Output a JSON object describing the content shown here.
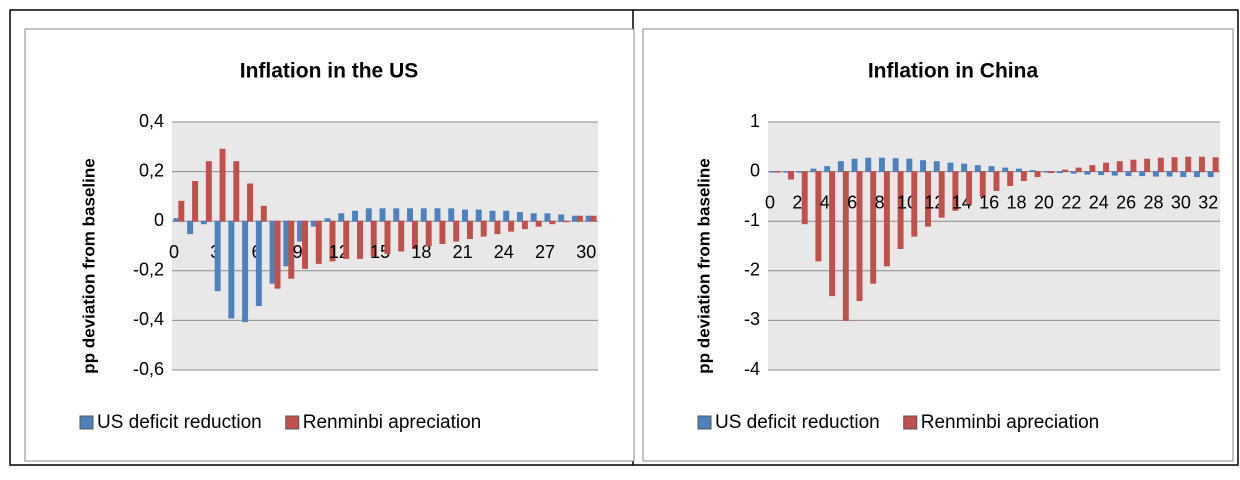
{
  "chart_data": [
    {
      "type": "bar",
      "title": "Inflation in the US",
      "y_label": "pp deviation from baseline",
      "categories": [
        "0",
        null,
        null,
        "3",
        null,
        null,
        "6",
        null,
        null,
        "9",
        null,
        null,
        "12",
        null,
        null,
        "15",
        null,
        null,
        "18",
        null,
        null,
        "21",
        null,
        null,
        "24",
        null,
        null,
        "27",
        null,
        null,
        "30"
      ],
      "series": [
        {
          "name": "US deficit reduction",
          "color": "#4f81bd",
          "values": [
            0.01,
            -0.05,
            -0.01,
            -0.28,
            -0.39,
            -0.405,
            -0.34,
            -0.25,
            -0.18,
            -0.08,
            -0.02,
            0.01,
            0.03,
            0.04,
            0.05,
            0.05,
            0.05,
            0.05,
            0.05,
            0.05,
            0.05,
            0.045,
            0.045,
            0.04,
            0.04,
            0.035,
            0.03,
            0.03,
            0.025,
            0.02,
            0.02
          ]
        },
        {
          "name": "Renminbi apreciation",
          "color": "#c0504d",
          "values": [
            0.08,
            0.16,
            0.24,
            0.29,
            0.24,
            0.15,
            0.06,
            -0.27,
            -0.23,
            -0.19,
            -0.17,
            -0.16,
            -0.15,
            -0.15,
            -0.14,
            -0.13,
            -0.12,
            -0.11,
            -0.1,
            -0.09,
            -0.08,
            -0.07,
            -0.06,
            -0.05,
            -0.04,
            -0.03,
            -0.02,
            -0.01,
            0,
            0.02,
            0.02
          ]
        }
      ],
      "ylim": [
        -0.6,
        0.4
      ],
      "yticks": [
        {
          "value": -0.6,
          "label": "-0,6"
        },
        {
          "value": -0.4,
          "label": "-0,4"
        },
        {
          "value": -0.2,
          "label": "-0,2"
        },
        0,
        {
          "value": 0.2,
          "label": "0,2"
        },
        {
          "value": 0.4,
          "label": "0,4"
        }
      ],
      "grid": true,
      "legend": "bottom"
    },
    {
      "type": "bar",
      "title": "Inflation in China",
      "y_label": "pp deviation from baseline",
      "categories": [
        "0",
        null,
        "2",
        null,
        "4",
        null,
        "6",
        null,
        "8",
        null,
        "10",
        null,
        "12",
        null,
        "14",
        null,
        "16",
        null,
        "18",
        null,
        "20",
        null,
        "22",
        null,
        "24",
        null,
        "26",
        null,
        "28",
        null,
        "30",
        null,
        "32"
      ],
      "series": [
        {
          "name": "US deficit reduction",
          "color": "#4f81bd",
          "values": [
            0,
            0,
            0,
            0.05,
            0.1,
            0.2,
            0.25,
            0.27,
            0.27,
            0.26,
            0.25,
            0.22,
            0.2,
            0.17,
            0.15,
            0.12,
            0.1,
            0.07,
            0.05,
            0.02,
            0,
            -0.02,
            -0.03,
            -0.05,
            -0.06,
            -0.07,
            -0.08,
            -0.08,
            -0.09,
            -0.09,
            -0.1,
            -0.1,
            -0.1
          ]
        },
        {
          "name": "Renminbi apreciation",
          "color": "#c0504d",
          "values": [
            0,
            -0.15,
            -1.05,
            -1.8,
            -2.5,
            -3.0,
            -2.6,
            -2.25,
            -1.9,
            -1.55,
            -1.3,
            -1.1,
            -0.92,
            -0.78,
            -0.65,
            -0.5,
            -0.38,
            -0.28,
            -0.18,
            -0.1,
            -0.02,
            0.03,
            0.07,
            0.12,
            0.17,
            0.2,
            0.23,
            0.25,
            0.27,
            0.28,
            0.29,
            0.29,
            0.28
          ]
        }
      ],
      "ylim": [
        -4,
        1
      ],
      "yticks": [
        -4,
        -3,
        -2,
        -1,
        0,
        1
      ],
      "grid": true,
      "legend": "bottom"
    }
  ]
}
